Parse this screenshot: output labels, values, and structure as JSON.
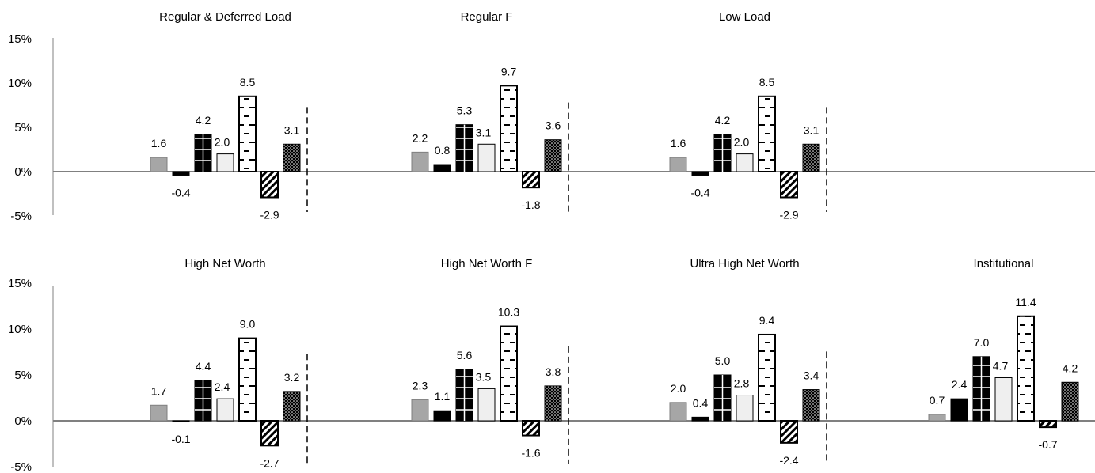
{
  "chart_data": {
    "type": "bar",
    "yticks": [
      "15%",
      "10%",
      "5%",
      "0%",
      "-5%"
    ],
    "ylim": [
      -5,
      15
    ],
    "grid": false,
    "rows": [
      {
        "panels": [
          {
            "title": "Regular & Deferred Load",
            "values": [
              1.6,
              -0.4,
              4.2,
              2.0,
              8.5,
              -2.9,
              3.1
            ],
            "labels": [
              "1.6",
              "-0.4",
              "4.2",
              "2.0",
              "8.5",
              "-2.9",
              "3.1"
            ]
          },
          {
            "title": "Regular F",
            "values": [
              2.2,
              0.8,
              5.3,
              3.1,
              9.7,
              -1.8,
              3.6
            ],
            "labels": [
              "2.2",
              "0.8",
              "5.3",
              "3.1",
              "9.7",
              "-1.8",
              "3.6"
            ]
          },
          {
            "title": "Low Load",
            "values": [
              1.6,
              -0.4,
              4.2,
              2.0,
              8.5,
              -2.9,
              3.1
            ],
            "labels": [
              "1.6",
              "-0.4",
              "4.2",
              "2.0",
              "8.5",
              "-2.9",
              "3.1"
            ]
          }
        ]
      },
      {
        "panels": [
          {
            "title": "High Net Worth",
            "values": [
              1.7,
              -0.1,
              4.4,
              2.4,
              9.0,
              -2.7,
              3.2
            ],
            "labels": [
              "1.7",
              "-0.1",
              "4.4",
              "2.4",
              "9.0",
              "-2.7",
              "3.2"
            ]
          },
          {
            "title": "High Net Worth F",
            "values": [
              2.3,
              1.1,
              5.6,
              3.5,
              10.3,
              -1.6,
              3.8
            ],
            "labels": [
              "2.3",
              "1.1",
              "5.6",
              "3.5",
              "10.3",
              "-1.6",
              "3.8"
            ]
          },
          {
            "title": "Ultra High Net Worth",
            "values": [
              2.0,
              0.4,
              5.0,
              2.8,
              9.4,
              -2.4,
              3.4
            ],
            "labels": [
              "2.0",
              "0.4",
              "5.0",
              "2.8",
              "9.4",
              "-2.4",
              "3.4"
            ]
          },
          {
            "title": "Institutional",
            "values": [
              0.7,
              2.4,
              7.0,
              4.7,
              11.4,
              -0.7,
              4.2
            ],
            "labels": [
              "0.7",
              "2.4",
              "7.0",
              "4.7",
              "11.4",
              "-0.7",
              "4.2"
            ]
          }
        ]
      }
    ],
    "series_styles": [
      "gray",
      "black",
      "black-cross",
      "light",
      "dash-pattern",
      "diagonal-hatch",
      "dot-pattern"
    ],
    "colors": {
      "gray": "#a6a6a6",
      "black": "#000000",
      "light": "#efefef",
      "axis": "#808080"
    }
  }
}
